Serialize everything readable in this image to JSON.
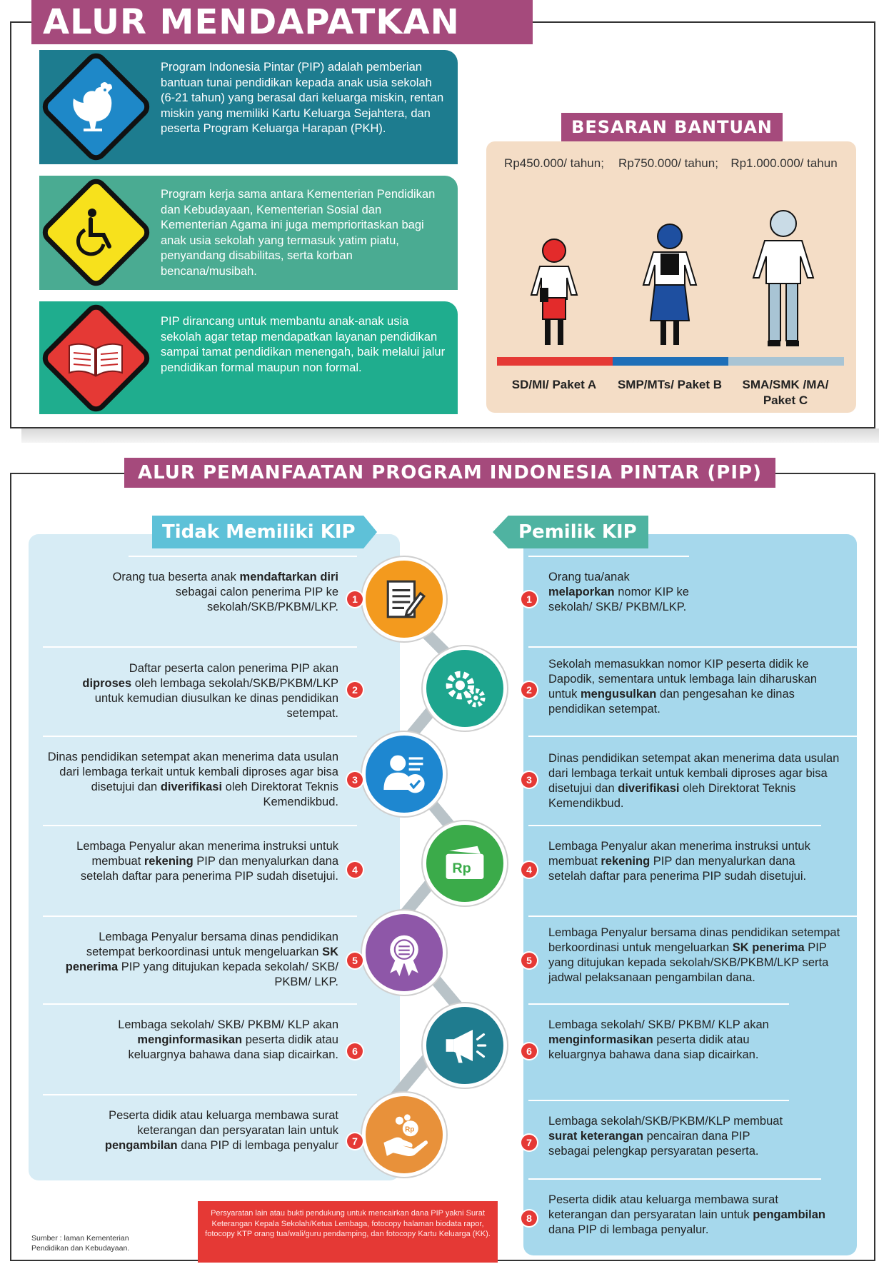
{
  "section1": {
    "title": "ALUR MENDAPATKAN PIP",
    "info": [
      {
        "icon": "rooster-icon",
        "text": "Program Indonesia Pintar (PIP) adalah pemberian bantuan tunai pendidikan kepada anak usia sekolah (6-21 tahun) yang berasal dari keluarga miskin, rentan miskin yang memiliki Kartu Keluarga Sejahtera, dan peserta Program Keluarga Harapan (PKH).",
        "color": "#1d7c8f"
      },
      {
        "icon": "wheelchair-icon",
        "text": "Program kerja sama antara Kementerian Pendidikan dan Kebudayaan, Kementerian Sosial dan Kementerian Agama ini juga memprioritaskan bagi anak usia sekolah yang termasuk yatim piatu, penyandang disabilitas, serta korban bencana/musibah.",
        "color": "#4aab92"
      },
      {
        "icon": "book-icon",
        "text": "PIP dirancang untuk membantu anak-anak usia sekolah agar tetap mendapatkan layanan pendidikan sampai tamat pendidikan menengah, baik melalui jalur pendidikan formal maupun non formal.",
        "color": "#1fad8e"
      }
    ],
    "besaran": {
      "title": "BESARAN BANTUAN",
      "amounts": [
        "Rp450.000/ tahun;",
        "Rp750.000/ tahun;",
        "Rp1.000.000/ tahun"
      ],
      "levels": [
        "SD/MI/ Paket A",
        "SMP/MTs/ Paket B",
        "SMA/SMK /MA/ Paket C"
      ],
      "level_colors": [
        "#e53935",
        "#1e6fb8",
        "#a8c4d4"
      ]
    }
  },
  "section2": {
    "title": "ALUR PEMANFAATAN PROGRAM INDONESIA PINTAR (PIP)",
    "left_header": "Tidak Memiliki KIP",
    "right_header": "Pemilik KIP",
    "left_steps": [
      {
        "n": "1",
        "pre": "Orang tua beserta anak",
        "bold": "mendaftarkan diri",
        "post": "sebagai calon penerima PIP ke sekolah/SKB/PKBM/LKP."
      },
      {
        "n": "2",
        "pre": "Daftar peserta calon penerima PIP akan",
        "bold": "diproses",
        "post": "oleh lembaga sekolah/SKB/PKBM/LKP untuk kemudian diusulkan ke dinas pendidikan setempat."
      },
      {
        "n": "3",
        "pre": "Dinas pendidikan setempat akan menerima data usulan dari lembaga terkait untuk kembali diproses agar bisa disetujui dan",
        "bold": "diverifikasi",
        "post": "oleh Direktorat Teknis Kemendikbud."
      },
      {
        "n": "4",
        "pre": "Lembaga Penyalur akan menerima instruksi untuk membuat",
        "bold": "rekening",
        "post": "PIP dan menyalurkan dana setelah daftar para penerima PIP sudah disetujui."
      },
      {
        "n": "5",
        "pre": "Lembaga Penyalur bersama dinas pendidikan setempat berkoordinasi untuk mengeluarkan",
        "bold": "SK penerima",
        "post": "PIP yang ditujukan kepada sekolah/ SKB/ PKBM/ LKP."
      },
      {
        "n": "6",
        "pre": "Lembaga sekolah/ SKB/ PKBM/ KLP akan",
        "bold": "menginformasikan",
        "post": "peserta didik atau keluargnya bahawa dana siap dicairkan."
      },
      {
        "n": "7",
        "pre": "Peserta didik atau keluarga membawa surat keterangan dan persyaratan lain untuk",
        "bold": "pengambilan",
        "post": "dana PIP di lembaga penyalur"
      }
    ],
    "right_steps": [
      {
        "n": "1",
        "pre": "Orang tua/anak",
        "bold": "melaporkan",
        "post": "nomor KIP ke sekolah/ SKB/ PKBM/LKP."
      },
      {
        "n": "2",
        "pre": "Sekolah memasukkan nomor KIP peserta didik ke Dapodik, sementara untuk lembaga lain diharuskan untuk",
        "bold": "mengusulkan",
        "post": "dan pengesahan ke dinas pendidikan setempat."
      },
      {
        "n": "3",
        "pre": "Dinas pendidikan setempat akan menerima data usulan dari lembaga terkait untuk kembali diproses agar bisa disetujui dan",
        "bold": "diverifikasi",
        "post": "oleh Direktorat Teknis Kemendikbud."
      },
      {
        "n": "4",
        "pre": "Lembaga Penyalur akan menerima instruksi untuk membuat",
        "bold": "rekening",
        "post": "PIP dan menyalurkan dana setelah daftar para penerima PIP sudah disetujui."
      },
      {
        "n": "5",
        "pre": "Lembaga Penyalur bersama dinas pendidikan setempat berkoordinasi untuk mengeluarkan",
        "bold": "SK penerima",
        "post": "PIP yang ditujukan kepada sekolah/SKB/PKBM/LKP serta jadwal pelaksanaan pengambilan dana."
      },
      {
        "n": "6",
        "pre": "Lembaga sekolah/ SKB/ PKBM/ KLP akan",
        "bold": "menginformasikan",
        "post": "peserta didik atau keluargnya bahawa dana siap dicairkan."
      },
      {
        "n": "7",
        "pre": "Lembaga sekolah/SKB/PKBM/KLP membuat",
        "bold": "surat keterangan",
        "post": "pencairan dana PIP sebagai pelengkap persyaratan peserta."
      },
      {
        "n": "8",
        "pre": "Peserta didik atau keluarga membawa surat keterangan dan persyaratan lain untuk",
        "bold": "pengambilan",
        "post": "dana PIP di lembaga penyalur."
      }
    ],
    "icons": [
      {
        "name": "form-icon",
        "color": "#f39a1e"
      },
      {
        "name": "gears-icon",
        "color": "#1ea58e"
      },
      {
        "name": "user-check-icon",
        "color": "#1e87d0"
      },
      {
        "name": "wallet-icon",
        "color": "#3bab4a"
      },
      {
        "name": "certificate-icon",
        "color": "#8e57a8"
      },
      {
        "name": "megaphone-icon",
        "color": "#1f7c8f"
      },
      {
        "name": "hand-money-icon",
        "color": "#e8913a"
      }
    ],
    "icon_labels": {
      "wallet": "Rp",
      "coin": "Rp"
    },
    "note": "Persyaratan lain atau bukti pendukung untuk mencairkan dana PIP yakni Surat Keterangan Kepala Sekolah/Ketua Lembaga, fotocopy halaman biodata rapor, fotocopy KTP orang tua/wali/guru pendamping, dan fotocopy Kartu Keluarga (KK).",
    "source": "Sumber : laman Kementerian Pendidikan dan Kebudayaan."
  }
}
